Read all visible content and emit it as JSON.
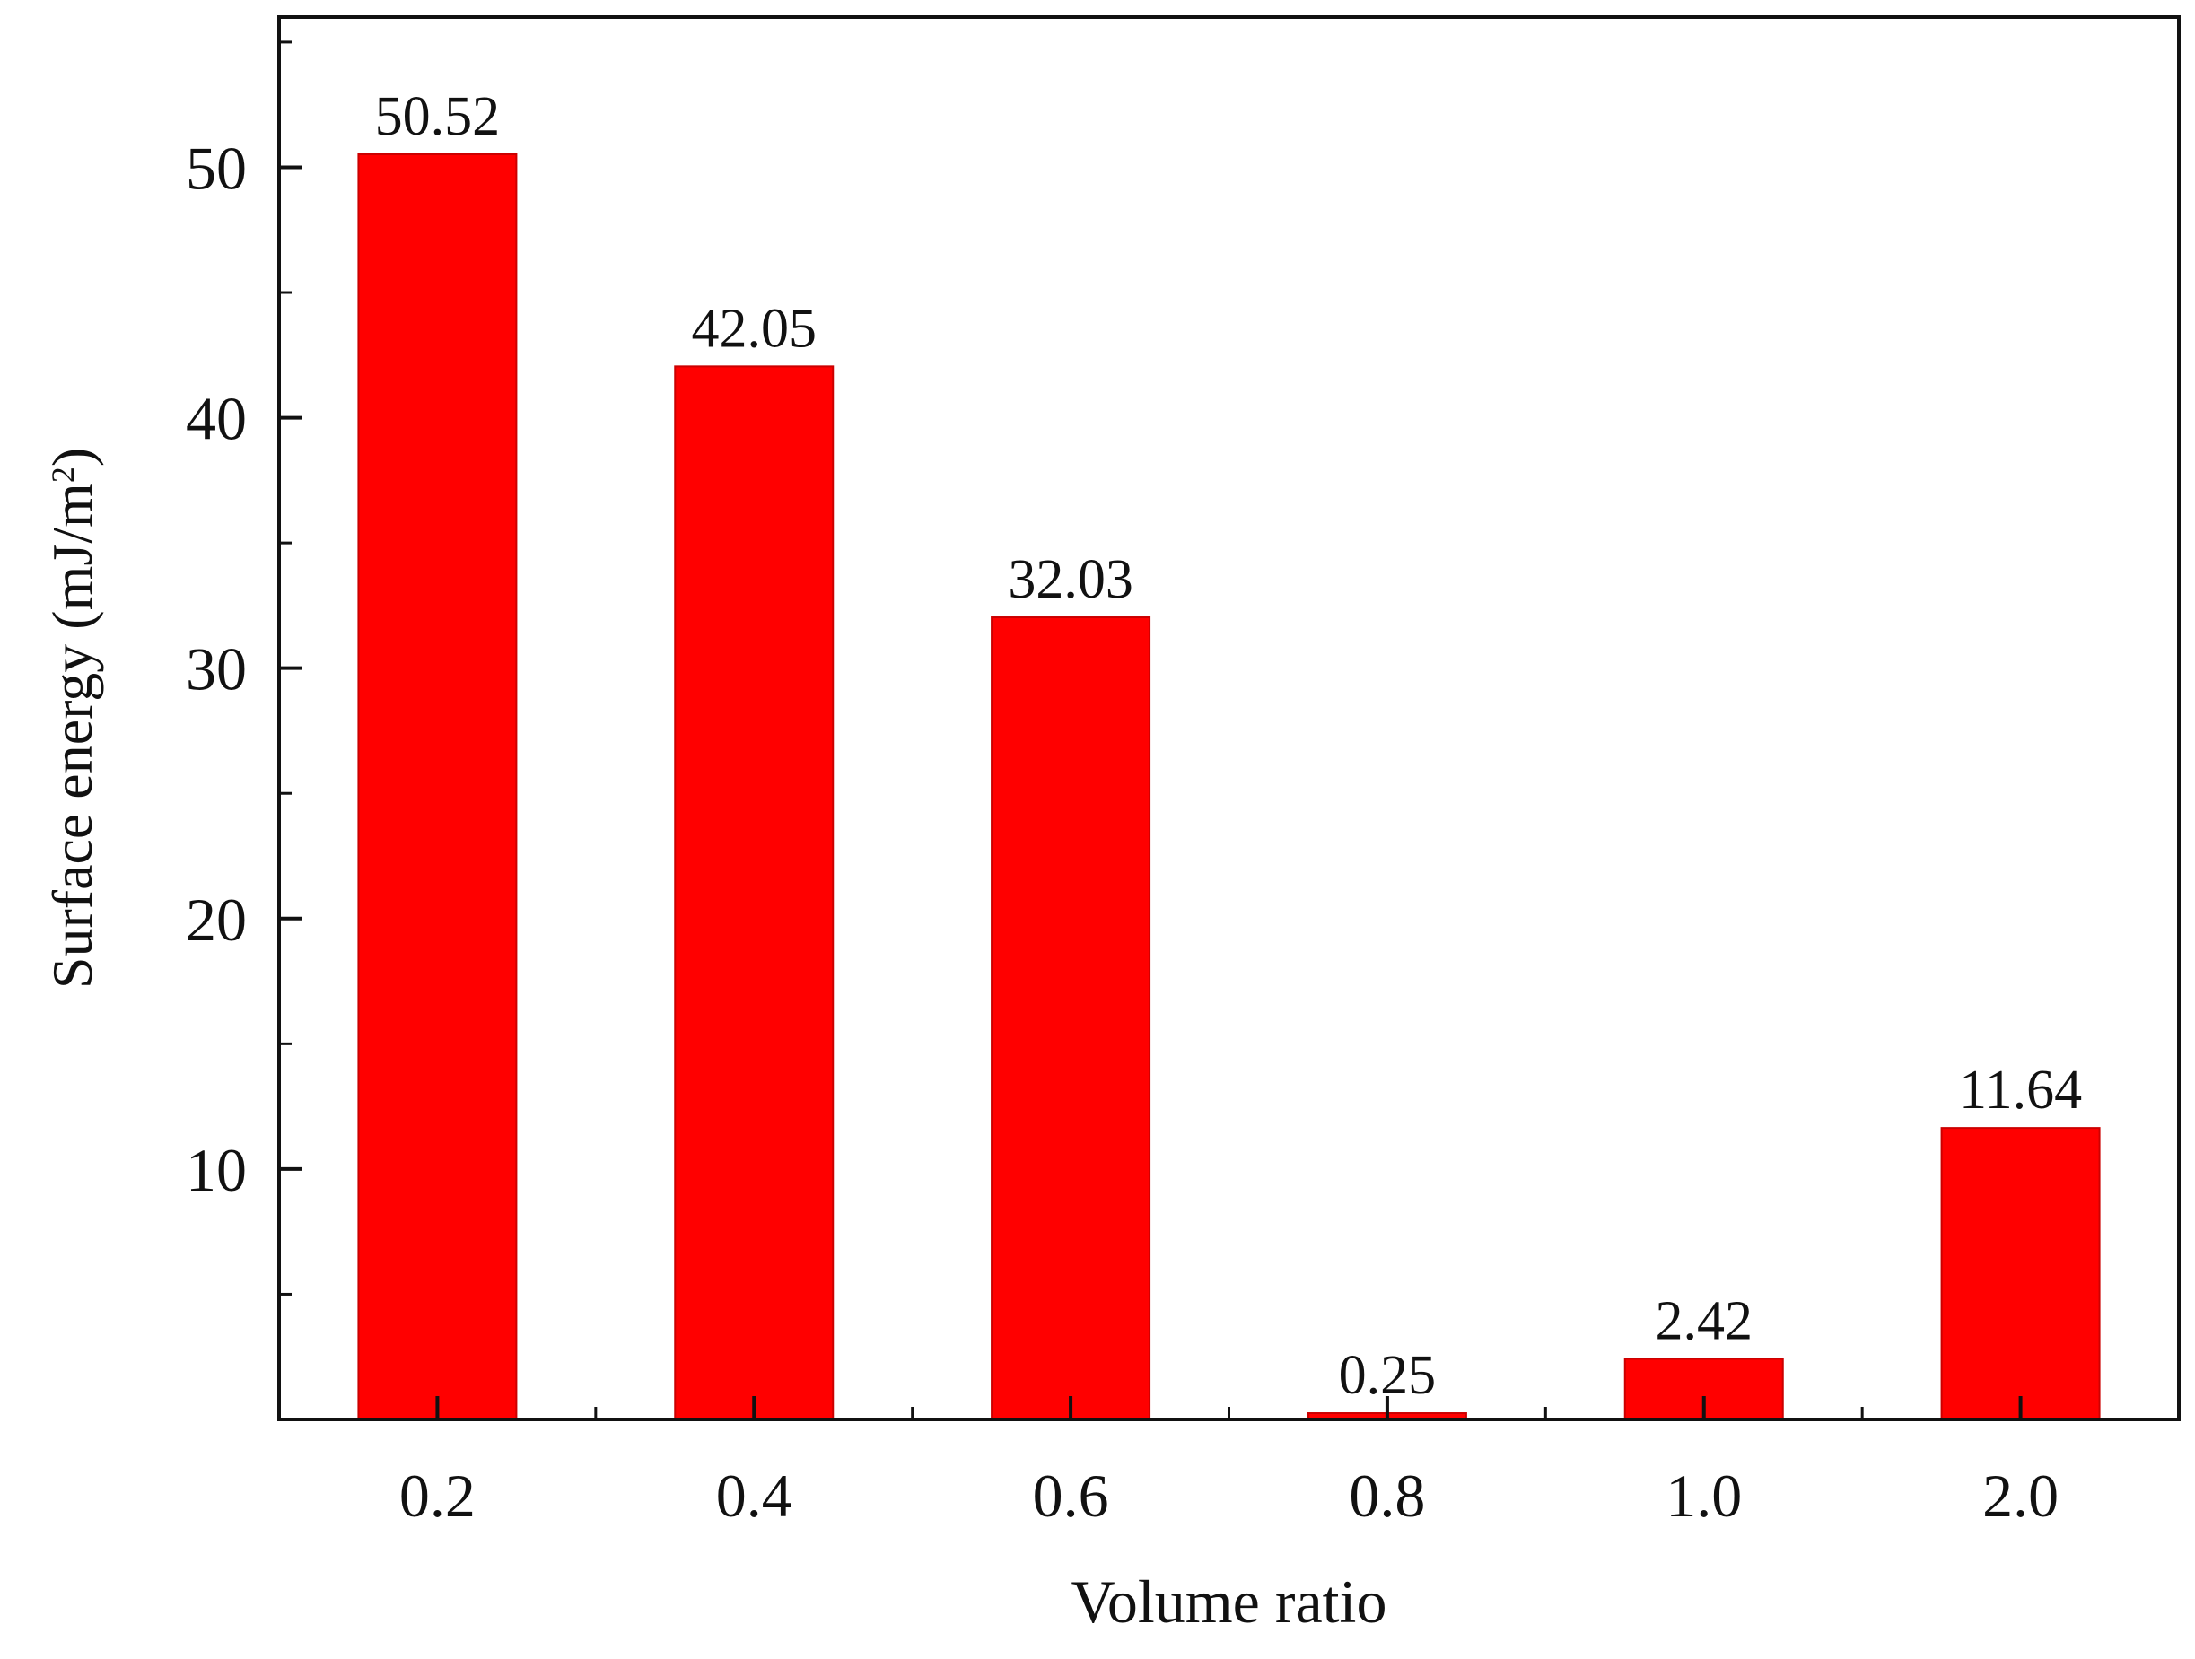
{
  "chart_data": {
    "type": "bar",
    "title": "",
    "xlabel": "Volume ratio",
    "ylabel": "Surface energy (mJ/m",
    "ylabel_superscript": "2",
    "ylabel_close": ")",
    "categories": [
      "0.2",
      "0.4",
      "0.6",
      "0.8",
      "1.0",
      "2.0"
    ],
    "values": [
      50.52,
      42.05,
      32.03,
      0.25,
      2.42,
      11.64
    ],
    "data_labels": [
      "50.52",
      "42.05",
      "32.03",
      "0.25",
      "2.42",
      "11.64"
    ],
    "ylim": [
      0,
      56
    ],
    "yticks": [
      10,
      20,
      30,
      40,
      50
    ],
    "ytick_labels": [
      "10",
      "20",
      "30",
      "40",
      "50"
    ],
    "y_minor_ticks": [
      5,
      15,
      25,
      35,
      45,
      55
    ],
    "grid": false,
    "legend": "none",
    "bar_color": "#ff0000",
    "bar_edge_color": "#cc0000",
    "axis_color": "#111111"
  }
}
